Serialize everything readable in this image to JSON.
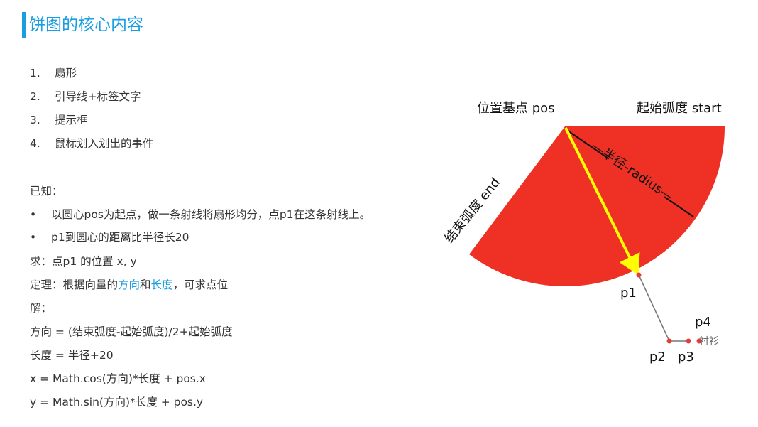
{
  "title": "饼图的核心内容",
  "list": [
    {
      "num": "1.",
      "text": "扇形"
    },
    {
      "num": "2.",
      "text": "引导线+标签文字"
    },
    {
      "num": "3.",
      "text": "提示框"
    },
    {
      "num": "4.",
      "text": "鼠标划入划出的事件"
    }
  ],
  "known_label": "已知：",
  "bullets": [
    {
      "dot": "•",
      "text": "以圆心pos为起点，做一条射线将扇形均分，点p1在这条射线上。"
    },
    {
      "dot": "•",
      "text": "p1到圆心的距离比半径长20"
    }
  ],
  "seek": "求：点p1 的位置 x, y",
  "theorem": {
    "prefix": "定理：根据向量的",
    "hl1": "方向",
    "mid": "和",
    "hl2": "长度",
    "suffix": "，可求点位"
  },
  "solution_label": "解：",
  "formulas": [
    "方向 = (结束弧度-起始弧度)/2+起始弧度",
    "长度 = 半径+20",
    "x = Math.cos(方向)*长度 + pos.x",
    "y = Math.sin(方向)*长度 + pos.y"
  ],
  "diagram": {
    "pos_label": "位置基点 pos",
    "start_label": "起始弧度 start",
    "end_label": "结束弧度 end",
    "radius_label": "—半径-radius—",
    "p1": "p1",
    "p2": "p2",
    "p3": "p3",
    "p4": "p4",
    "p4_text": "衬衫",
    "colors": {
      "sector": "#ee3124",
      "arrow": "#ffff00",
      "guide_line": "#777777",
      "point": "#e03c3c",
      "accent": "#1a9ee0"
    }
  }
}
